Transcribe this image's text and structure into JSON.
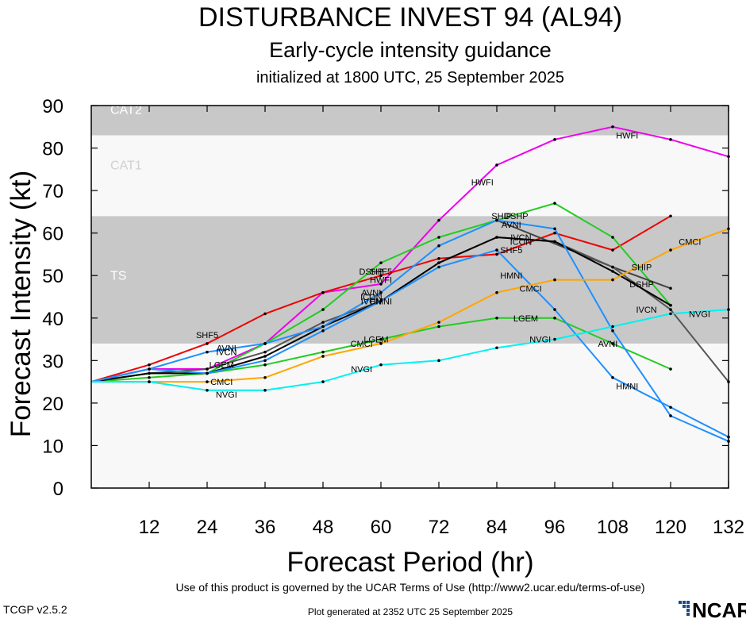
{
  "header": {
    "title": "DISTURBANCE INVEST 94 (AL94)",
    "subtitle": "Early-cycle intensity guidance",
    "init_line": "initialized at 1800 UTC, 25 September 2025"
  },
  "footer": {
    "terms": "Use of this product is governed by the UCAR Terms of Use (http://www2.ucar.edu/terms-of-use)",
    "version": "TCGP v2.5.2",
    "generated": "Plot generated at 2352 UTC   25 September 2025",
    "logo_text": "NCAR"
  },
  "chart_data": {
    "type": "line",
    "title": "DISTURBANCE INVEST 94 (AL94)",
    "xlabel": "Forecast Period (hr)",
    "ylabel": "Forecast Intensity (kt)",
    "xlim": [
      0,
      132
    ],
    "ylim": [
      0,
      90
    ],
    "xticks": [
      12,
      24,
      36,
      48,
      60,
      72,
      84,
      96,
      108,
      120,
      132
    ],
    "yticks": [
      0,
      10,
      20,
      30,
      40,
      50,
      60,
      70,
      80,
      90
    ],
    "bands": [
      {
        "label": "TS",
        "from": 34,
        "to": 64,
        "color": "#c8c8c8"
      },
      {
        "label": "CAT1",
        "from": 64,
        "to": 83,
        "color": "#f8f8f8"
      },
      {
        "label": "CAT2",
        "from": 83,
        "to": 96,
        "color": "#c8c8c8"
      }
    ],
    "series": [
      {
        "name": "HWFI",
        "color": "#ee00ee",
        "x": [
          0,
          12,
          24,
          36,
          48,
          60,
          72,
          84,
          96,
          108,
          120,
          132
        ],
        "y": [
          25,
          28,
          28,
          34,
          46,
          48,
          63,
          76,
          82,
          85,
          82,
          78
        ],
        "labels": [
          [
            60,
            49
          ],
          [
            81,
            72
          ],
          [
            111,
            83
          ]
        ]
      },
      {
        "name": "SHF5",
        "color": "#ee0000",
        "x": [
          0,
          12,
          24,
          36,
          48,
          60,
          72,
          84,
          96,
          108,
          120
        ],
        "y": [
          25,
          29,
          34,
          41,
          46,
          50,
          54,
          55,
          60,
          56,
          64
        ],
        "labels": [
          [
            24,
            36
          ],
          [
            60,
            51
          ],
          [
            87,
            56
          ]
        ]
      },
      {
        "name": "DSHP",
        "color": "#22cc22",
        "x": [
          0,
          12,
          24,
          36,
          48,
          60,
          72,
          84,
          96,
          108,
          120
        ],
        "y": [
          25,
          27,
          27,
          34,
          42,
          53,
          59,
          63,
          67,
          59,
          43
        ],
        "labels": [
          [
            58,
            51
          ],
          [
            88,
            64
          ],
          [
            114,
            48
          ]
        ]
      },
      {
        "name": "SHIP",
        "color": "#444444",
        "x": [
          84,
          108,
          120
        ],
        "y": [
          63,
          52,
          47
        ],
        "labels": [
          [
            85,
            64
          ],
          [
            114,
            52
          ]
        ]
      },
      {
        "name": "LGEM",
        "color": "#22cc22",
        "x": [
          0,
          12,
          24,
          36,
          48,
          60,
          72,
          84,
          96,
          108,
          120
        ],
        "y": [
          25,
          26,
          27,
          29,
          32,
          35,
          38,
          40,
          40,
          34,
          28
        ],
        "labels": [
          [
            27,
            29
          ],
          [
            59,
            35
          ],
          [
            90,
            40
          ]
        ]
      },
      {
        "name": "IVCN",
        "color": "#555555",
        "x": [
          0,
          12,
          24,
          36,
          48,
          60,
          72,
          84,
          96,
          108,
          120,
          132
        ],
        "y": [
          25,
          27,
          28,
          32,
          39,
          44,
          53,
          59,
          58,
          52,
          42,
          25
        ],
        "labels": [
          [
            28,
            32
          ],
          [
            58,
            44
          ],
          [
            89,
            59
          ],
          [
            115,
            42
          ]
        ]
      },
      {
        "name": "ICON",
        "color": "#000000",
        "x": [
          0,
          12,
          24,
          36,
          48,
          60,
          72,
          84,
          96,
          108,
          120
        ],
        "y": [
          25,
          27,
          27,
          31,
          38,
          44,
          53,
          59,
          58,
          51,
          43
        ],
        "labels": [
          [
            58,
            45
          ],
          [
            89,
            58
          ]
        ]
      },
      {
        "name": "AVNI",
        "color": "#1e90ff",
        "x": [
          0,
          12,
          24,
          36,
          48,
          60,
          72,
          84,
          96,
          108,
          120,
          132
        ],
        "y": [
          25,
          28,
          32,
          34,
          38,
          46,
          57,
          63,
          61,
          37,
          17,
          11
        ],
        "labels": [
          [
            28,
            33
          ],
          [
            58,
            46
          ],
          [
            87,
            62
          ],
          [
            107,
            34
          ]
        ]
      },
      {
        "name": "HMNI",
        "color": "#1e90ff",
        "x": [
          0,
          12,
          24,
          36,
          48,
          60,
          72,
          84,
          96,
          108,
          120,
          132
        ],
        "y": [
          25,
          28,
          27,
          30,
          37,
          44,
          52,
          56,
          42,
          26,
          19,
          12
        ],
        "labels": [
          [
            60,
            44
          ],
          [
            87,
            50
          ],
          [
            111,
            24
          ]
        ]
      },
      {
        "name": "CMCI",
        "color": "#ffa500",
        "x": [
          0,
          12,
          24,
          36,
          48,
          60,
          72,
          84,
          96,
          108,
          120,
          132
        ],
        "y": [
          25,
          25,
          25,
          26,
          31,
          34,
          39,
          46,
          49,
          49,
          56,
          61
        ],
        "labels": [
          [
            27,
            25
          ],
          [
            56,
            34
          ],
          [
            91,
            47
          ],
          [
            124,
            58
          ]
        ]
      },
      {
        "name": "NVGI",
        "color": "#00f0f0",
        "x": [
          0,
          12,
          24,
          36,
          48,
          60,
          72,
          84,
          96,
          108,
          120,
          132
        ],
        "y": [
          25,
          25,
          23,
          23,
          25,
          29,
          30,
          33,
          35,
          38,
          41,
          42
        ],
        "labels": [
          [
            28,
            22
          ],
          [
            56,
            28
          ],
          [
            93,
            35
          ],
          [
            126,
            41
          ]
        ]
      }
    ]
  }
}
